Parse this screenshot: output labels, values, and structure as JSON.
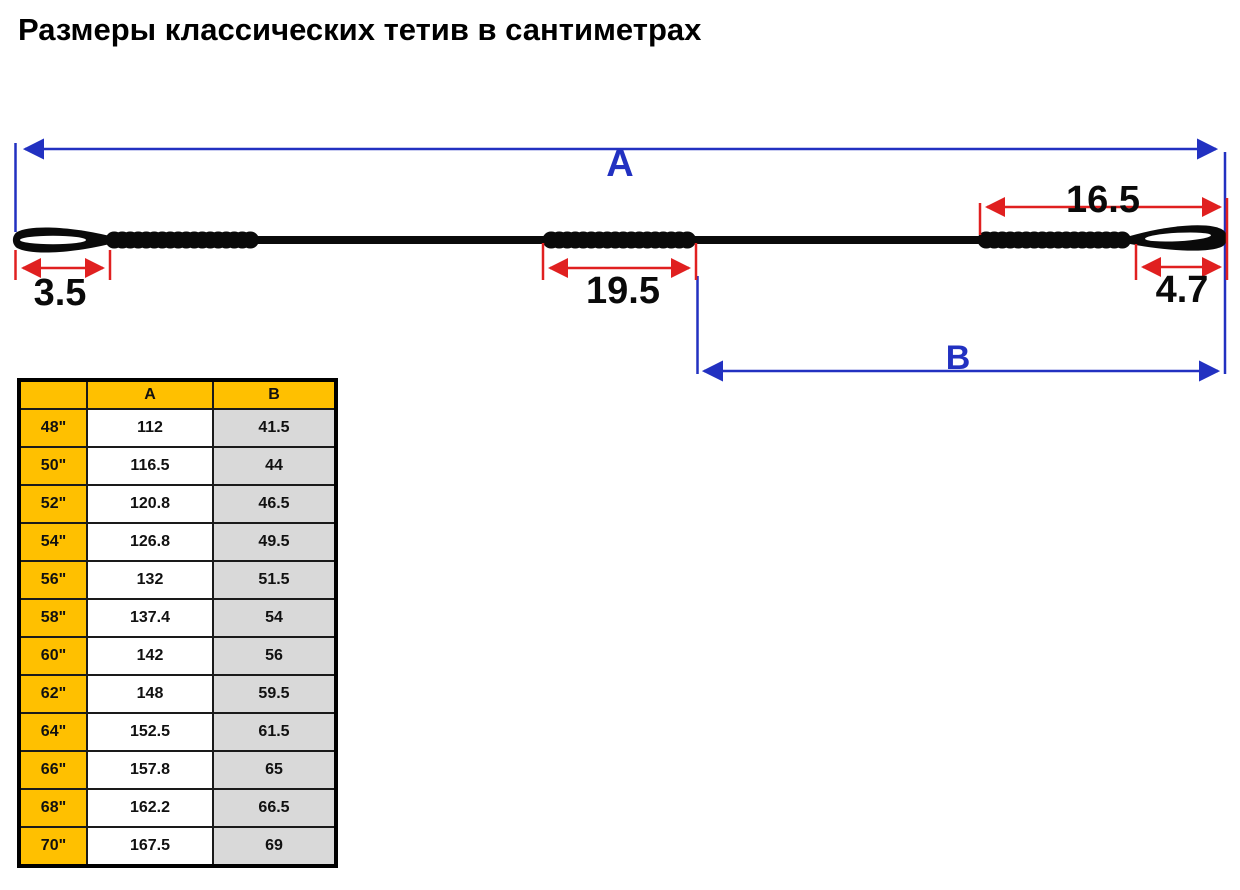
{
  "title": "Размеры классических тетив в сантиметрах",
  "diagram": {
    "label_total_length": "A",
    "label_loop_to_serving": "B",
    "dim_left_loop": "3.5",
    "dim_center_serving": "19.5",
    "dim_right_serving_section": "16.5",
    "dim_right_loop": "4.7"
  },
  "colors": {
    "dimension_blue": "#2231C1",
    "dimension_red": "#E02020",
    "string_black": "#0a0a0a",
    "table_header_bg": "#FFC000",
    "table_col_b_bg": "#D9D9D9",
    "table_col_a_bg": "#FFFFFF"
  },
  "table": {
    "col_headers": [
      "",
      "A",
      "B"
    ],
    "rows": [
      [
        "48\"",
        "112",
        "41.5"
      ],
      [
        "50\"",
        "116.5",
        "44"
      ],
      [
        "52\"",
        "120.8",
        "46.5"
      ],
      [
        "54\"",
        "126.8",
        "49.5"
      ],
      [
        "56\"",
        "132",
        "51.5"
      ],
      [
        "58\"",
        "137.4",
        "54"
      ],
      [
        "60\"",
        "142",
        "56"
      ],
      [
        "62\"",
        "148",
        "59.5"
      ],
      [
        "64\"",
        "152.5",
        "61.5"
      ],
      [
        "66\"",
        "157.8",
        "65"
      ],
      [
        "68\"",
        "162.2",
        "66.5"
      ],
      [
        "70\"",
        "167.5",
        "69"
      ]
    ]
  }
}
